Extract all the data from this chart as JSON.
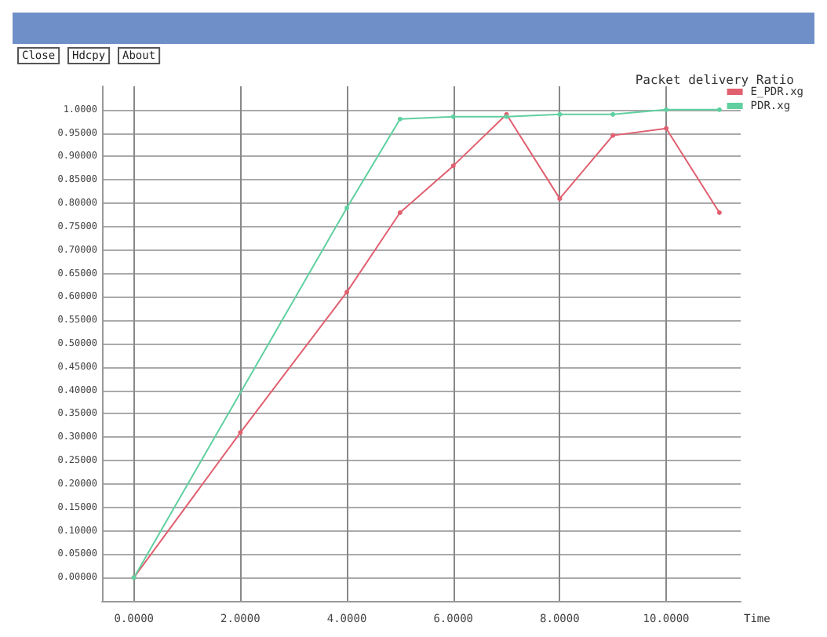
{
  "chart_data": {
    "type": "line",
    "title": "Packet delivery Ratio",
    "xlabel": "Time",
    "annotations": [
      "Close",
      "Hdcpy",
      "About"
    ],
    "xlim": [
      -0.6,
      11.4
    ],
    "ylim": [
      -0.05,
      1.05
    ],
    "xticks": [
      {
        "value": 0,
        "label": "0.0000"
      },
      {
        "value": 2,
        "label": "2.0000"
      },
      {
        "value": 4,
        "label": "4.0000"
      },
      {
        "value": 6,
        "label": "6.0000"
      },
      {
        "value": 8,
        "label": "8.0000"
      },
      {
        "value": 10,
        "label": "10.0000"
      }
    ],
    "yticks": [
      {
        "value": 0,
        "label": "0.00000"
      },
      {
        "value": 0.05,
        "label": "0.05000"
      },
      {
        "value": 0.1,
        "label": "0.10000"
      },
      {
        "value": 0.15,
        "label": "0.15000"
      },
      {
        "value": 0.2,
        "label": "0.20000"
      },
      {
        "value": 0.25,
        "label": "0.25000"
      },
      {
        "value": 0.3,
        "label": "0.30000"
      },
      {
        "value": 0.35,
        "label": "0.35000"
      },
      {
        "value": 0.4,
        "label": "0.40000"
      },
      {
        "value": 0.45,
        "label": "0.45000"
      },
      {
        "value": 0.5,
        "label": "0.50000"
      },
      {
        "value": 0.55,
        "label": "0.55000"
      },
      {
        "value": 0.6,
        "label": "0.60000"
      },
      {
        "value": 0.65,
        "label": "0.65000"
      },
      {
        "value": 0.7,
        "label": "0.70000"
      },
      {
        "value": 0.75,
        "label": "0.75000"
      },
      {
        "value": 0.8,
        "label": "0.80000"
      },
      {
        "value": 0.85,
        "label": "0.85000"
      },
      {
        "value": 0.9,
        "label": "0.90000"
      },
      {
        "value": 0.95,
        "label": "0.95000"
      },
      {
        "value": 1,
        "label": "1.0000"
      }
    ],
    "grid": true,
    "legend": "top right",
    "marker": "circle",
    "line_style": "solid",
    "series": [
      {
        "name": "E_PDR.xg",
        "color": "#e06070",
        "x": [
          0,
          2,
          4,
          5,
          6,
          7,
          8,
          9,
          10,
          11
        ],
        "values": [
          0,
          0.31,
          0.61,
          0.78,
          0.88,
          0.99,
          0.81,
          0.945,
          0.96,
          0.78
        ]
      },
      {
        "name": "PDR.xg",
        "color": "#60d0a0",
        "x": [
          0,
          4,
          5,
          6,
          7,
          8,
          9,
          10,
          11
        ],
        "values": [
          0,
          0.79,
          0.98,
          0.985,
          0.985,
          0.99,
          0.99,
          1.0,
          1.0
        ]
      }
    ]
  }
}
